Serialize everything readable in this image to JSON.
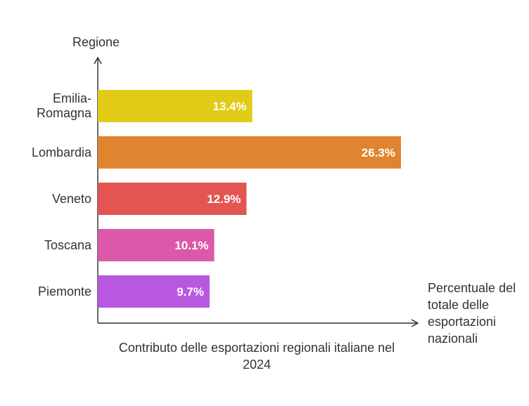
{
  "chart_data": {
    "type": "bar",
    "orientation": "horizontal",
    "caption": "Contributo delle esportazioni regionali italiane nel 2024",
    "ylabel": "Regione",
    "xlabel": "Percentuale del totale delle esportazioni nazionali",
    "categories": [
      "Emilia-\nRomagna",
      "Lombardia",
      "Veneto",
      "Toscana",
      "Piemonte"
    ],
    "values": [
      13.4,
      26.3,
      12.9,
      10.1,
      9.7
    ],
    "value_labels": [
      "13.4%",
      "26.3%",
      "12.9%",
      "10.1%",
      "9.7%"
    ],
    "colors": [
      "#e1cb16",
      "#e0842f",
      "#e25553",
      "#dc58a8",
      "#b858e0"
    ],
    "xlim": [
      0,
      26.3
    ],
    "grid": false,
    "legend": "none"
  }
}
